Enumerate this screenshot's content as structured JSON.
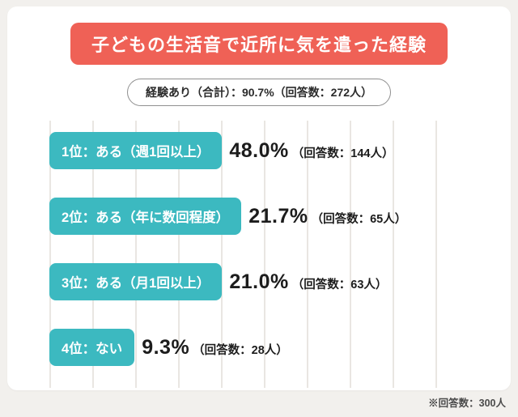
{
  "header": {
    "title": "子どもの生活音で近所に気を遣った経験"
  },
  "summary": {
    "text": "経験あり（合計）：90.7%（回答数：272人）"
  },
  "rows": [
    {
      "label": "1位：ある（週1回以上）",
      "percent": "48.0%",
      "count": "（回答数：144人）"
    },
    {
      "label": "2位：ある（年に数回程度）",
      "percent": "21.7%",
      "count": "（回答数：65人）"
    },
    {
      "label": "3位：ある（月1回以上）",
      "percent": "21.0%",
      "count": "（回答数：63人）"
    },
    {
      "label": "4位：ない",
      "percent": "9.3%",
      "count": "（回答数：28人）"
    }
  ],
  "footnote": "※回答数：300人",
  "colors": {
    "background": "#f2f0ed",
    "card": "#ffffff",
    "banner_red": "#ef6156",
    "bar_teal": "#3cb9c0",
    "gridline": "#e9e6e2",
    "text_dark": "#1c1c1c"
  },
  "chart_data": {
    "type": "bar",
    "orientation": "horizontal",
    "title": "子どもの生活音で近所に気を遣った経験",
    "categories": [
      "ある（週1回以上）",
      "ある（年に数回程度）",
      "ある（月1回以上）",
      "ない"
    ],
    "ranks": [
      "1位",
      "2位",
      "3位",
      "4位"
    ],
    "values": [
      48.0,
      21.7,
      21.0,
      9.3
    ],
    "counts": [
      144,
      65,
      63,
      28
    ],
    "unit": "%",
    "xlim": [
      0,
      100
    ],
    "grid": "vertical",
    "legend": "none",
    "summary": {
      "label": "経験あり（合計）",
      "percent": 90.7,
      "count": 272
    },
    "total_responses": 300
  }
}
